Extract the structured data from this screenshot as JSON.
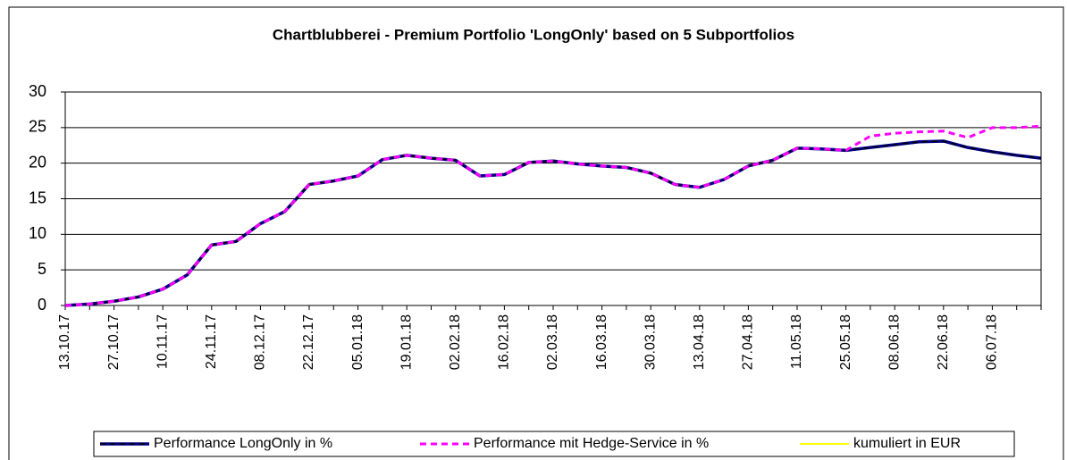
{
  "chart_data": {
    "type": "line",
    "title": "Chartblubberei - Premium Portfolio 'LongOnly' based on 5 Subportfolios",
    "categories": [
      "13.10.17",
      null,
      "27.10.17",
      null,
      "10.11.17",
      null,
      "24.11.17",
      null,
      "08.12.17",
      null,
      "22.12.17",
      null,
      "05.01.18",
      null,
      "19.01.18",
      null,
      "02.02.18",
      null,
      "16.02.18",
      null,
      "02.03.18",
      null,
      "16.03.18",
      null,
      "30.03.18",
      null,
      "13.04.18",
      null,
      "27.04.18",
      null,
      "11.05.18",
      null,
      "25.05.18",
      null,
      "08.06.18",
      null,
      "22.06.18",
      null,
      "06.07.18",
      null,
      null
    ],
    "series": [
      {
        "name": "Performance LongOnly in %",
        "color": "#000080",
        "dash_color": "#000000",
        "values": [
          0,
          0.2,
          0.6,
          1.2,
          2.3,
          4.3,
          8.5,
          9.0,
          11.5,
          13.2,
          17.0,
          17.5,
          18.2,
          20.5,
          21.1,
          20.7,
          20.4,
          18.2,
          18.4,
          20.1,
          20.3,
          19.9,
          19.6,
          19.4,
          18.6,
          17.0,
          16.6,
          17.7,
          19.6,
          20.4,
          22.1,
          22.0,
          21.8,
          22.2,
          22.6,
          23.0,
          23.1,
          22.2,
          21.6,
          21.1,
          20.7
        ]
      },
      {
        "name": "Performance mit Hedge-Service in %",
        "color": "#ff00ff",
        "values": [
          0,
          0.2,
          0.6,
          1.2,
          2.3,
          4.3,
          8.5,
          9.0,
          11.5,
          13.2,
          17.0,
          17.5,
          18.2,
          20.5,
          21.1,
          20.7,
          20.4,
          18.2,
          18.4,
          20.1,
          20.3,
          19.9,
          19.6,
          19.4,
          18.6,
          17.0,
          16.6,
          17.7,
          19.6,
          20.4,
          22.1,
          22.0,
          21.8,
          23.8,
          24.2,
          24.4,
          24.5,
          23.6,
          25.0,
          25.0,
          25.2
        ]
      },
      {
        "name": "kumuliert in EUR",
        "color": "#ffff00",
        "values": [
          null,
          null,
          null,
          null,
          null,
          null,
          null,
          null,
          null,
          null,
          null,
          null,
          null,
          null,
          null,
          null,
          null,
          null,
          null,
          null,
          null,
          null,
          null,
          null,
          null,
          null,
          null,
          null,
          null,
          null,
          null,
          null,
          null,
          null,
          null,
          null,
          null,
          null,
          null,
          null,
          null
        ]
      }
    ],
    "ylim": [
      0,
      30
    ],
    "yticks": [
      0,
      5,
      10,
      15,
      20,
      25,
      30
    ],
    "grid": true,
    "legend": "bottom"
  }
}
